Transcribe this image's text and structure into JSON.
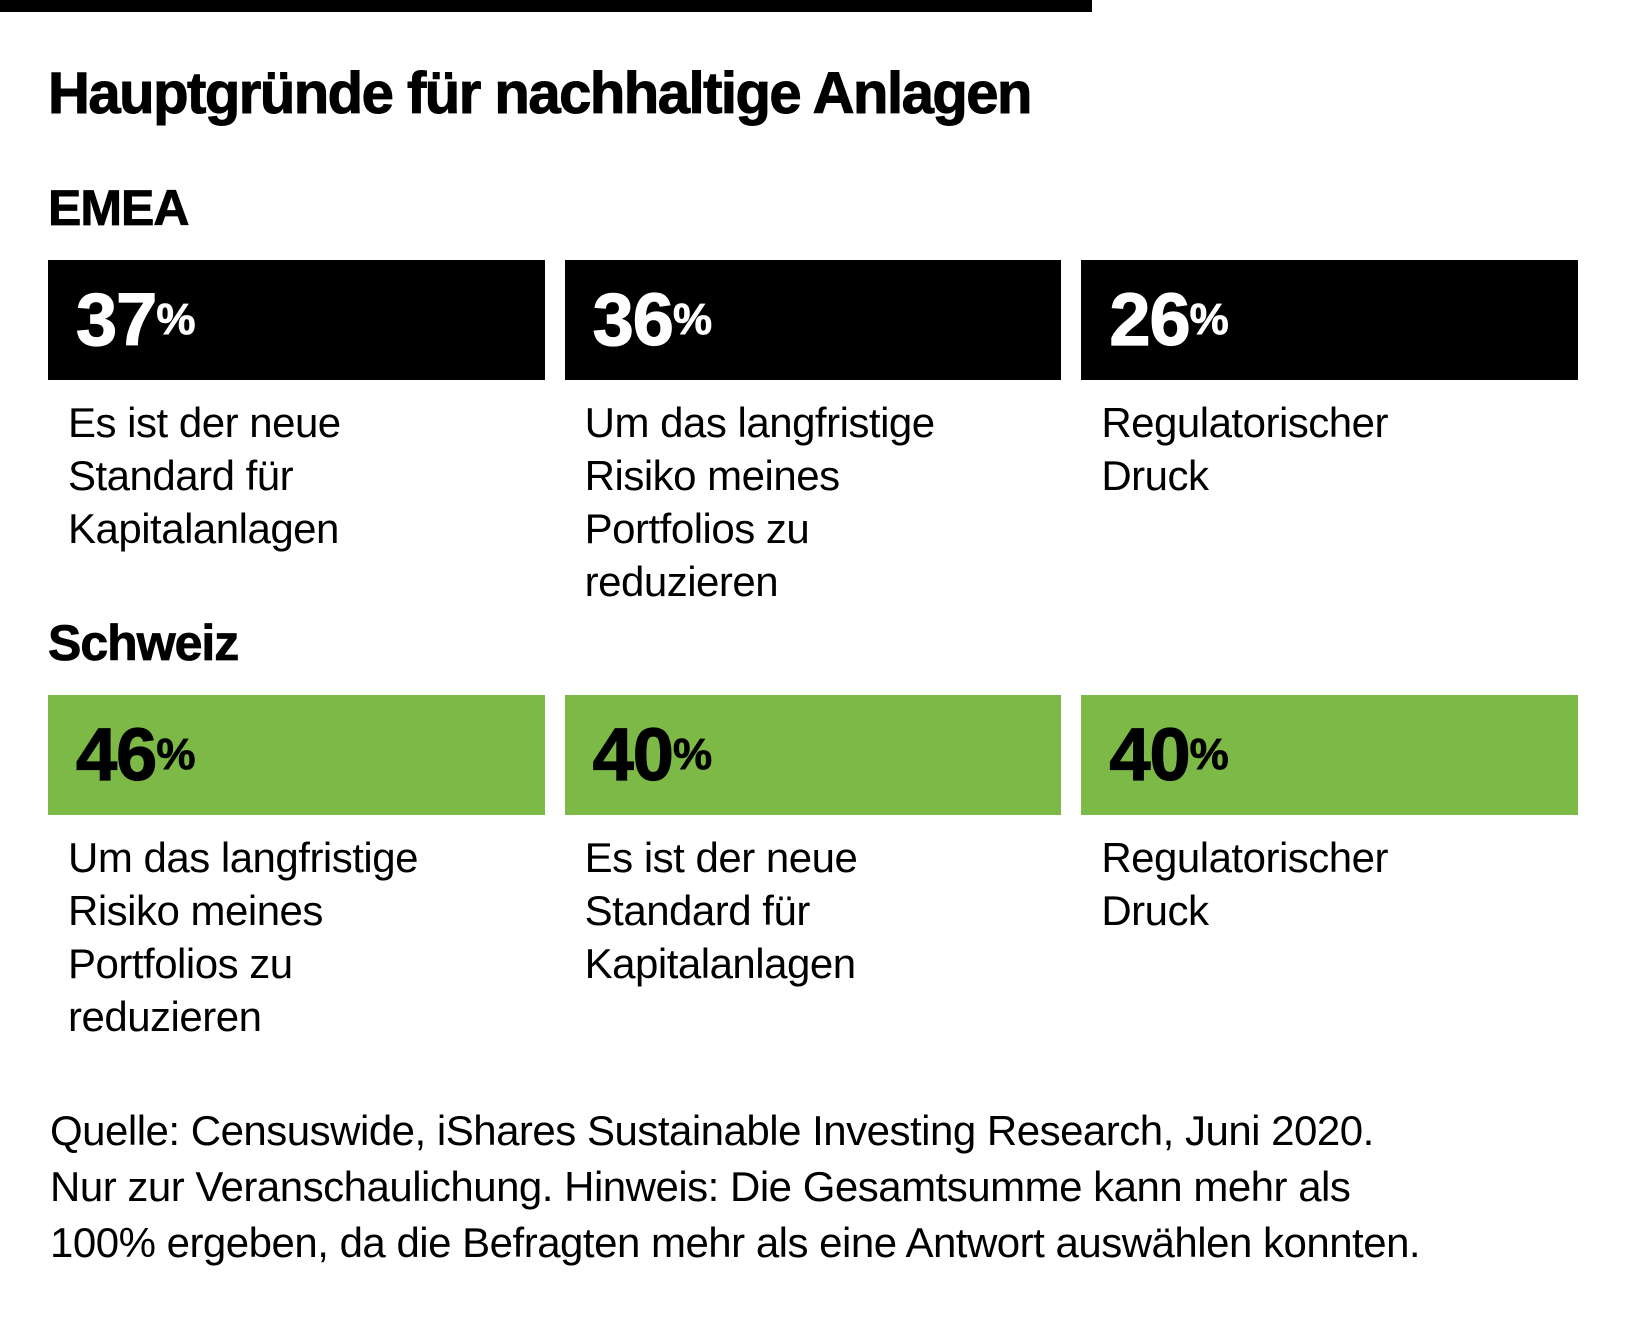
{
  "title": "Hauptgründe für nachhaltige Anlagen",
  "colors": {
    "emea_box": "#000000",
    "schweiz_box": "#7db946",
    "background": "#ffffff",
    "text": "#000000"
  },
  "sections": [
    {
      "label": "EMEA",
      "items": [
        {
          "value": "37",
          "unit": "%",
          "label": "Es ist der neue Standard für Kapitalanlagen"
        },
        {
          "value": "36",
          "unit": "%",
          "label": "Um das langfristige Risiko meines Portfolios zu reduzieren"
        },
        {
          "value": "26",
          "unit": "%",
          "label": "Regulatorischer Druck"
        }
      ]
    },
    {
      "label": "Schweiz",
      "items": [
        {
          "value": "46",
          "unit": "%",
          "label": "Um das langfristige Risiko meines Portfolios zu reduzieren"
        },
        {
          "value": "40",
          "unit": "%",
          "label": "Es ist der neue Standard für Kapitalanlagen"
        },
        {
          "value": "40",
          "unit": "%",
          "label": "Regulatorischer Druck"
        }
      ]
    }
  ],
  "footnote_lines": [
    "Quelle: Censuswide, iShares Sustainable Investing Research, Juni 2020.",
    "Nur zur Veranschaulichung. Hinweis: Die Gesamtsumme kann mehr als",
    "100% ergeben, da die Befragten mehr als eine Antwort auswählen konnten."
  ],
  "chart_data": {
    "type": "bar",
    "title": "Hauptgründe für nachhaltige Anlagen",
    "unit": "%",
    "categories": [
      "Es ist der neue Standard für Kapitalanlagen",
      "Um das langfristige Risiko meines Portfolios zu reduzieren",
      "Regulatorischer Druck"
    ],
    "series": [
      {
        "name": "EMEA",
        "color": "#000000",
        "values": [
          37,
          36,
          26
        ]
      },
      {
        "name": "Schweiz",
        "color": "#7db946",
        "values": [
          40,
          46,
          40
        ]
      }
    ],
    "legend_position": "none",
    "grid": false,
    "source": "Censuswide, iShares Sustainable Investing Research, Juni 2020",
    "note": "Nur zur Veranschaulichung. Die Gesamtsumme kann mehr als 100% ergeben, da die Befragten mehr als eine Antwort auswählen konnten."
  }
}
